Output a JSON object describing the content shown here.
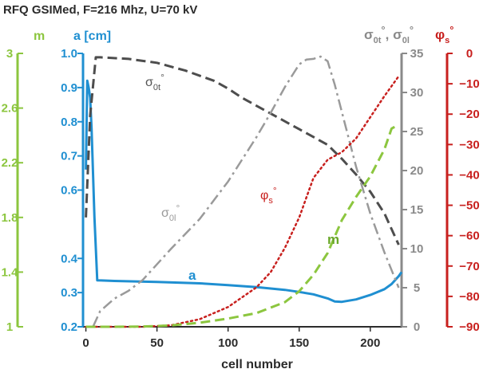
{
  "chart_data": {
    "type": "line",
    "title": "RFQ GSIMed, F=216 Mhz, U=70 kV",
    "xlabel": "cell number",
    "xlim": [
      -2,
      222
    ],
    "xticks": [
      "0",
      "50",
      "100",
      "150",
      "200"
    ],
    "axes": {
      "m": {
        "label": "m",
        "color": "#8cc63f",
        "range": [
          1,
          3
        ],
        "ticks": [
          "1",
          "1.4",
          "1.8",
          "2.2",
          "2.6",
          "3"
        ]
      },
      "a": {
        "label": "a [cm]",
        "color": "#1f8fd1",
        "range": [
          0.2,
          1.0
        ],
        "ticks": [
          "0.2",
          "0.3",
          "0.4",
          "0.6",
          "0.7",
          "0.8",
          "0.9",
          "1.0"
        ]
      },
      "sigma": {
        "label_main": "σ",
        "label_sub_1": "0t",
        "label_sub_2": "0l",
        "label_sup": "°",
        "color": "#8a8a8a",
        "range": [
          0,
          35
        ],
        "ticks": [
          "0",
          "5",
          "10",
          "15",
          "20",
          "25",
          "30",
          "35"
        ]
      },
      "phi": {
        "label_main": "φ",
        "label_sub": "s",
        "label_sup": "°",
        "color": "#c8201e",
        "range": [
          -90,
          0
        ],
        "ticks": [
          "0",
          "−10",
          "−20",
          "−30",
          "−40",
          "−50",
          "−60",
          "−70",
          "−80",
          "−90"
        ]
      }
    },
    "series": [
      {
        "name": "a",
        "axis": "a",
        "color": "#1f8fd1",
        "style": "solid",
        "x": [
          0,
          1,
          2,
          3,
          4,
          5,
          6,
          8,
          20,
          50,
          80,
          100,
          120,
          140,
          150,
          160,
          170,
          175,
          180,
          190,
          200,
          210,
          215,
          220,
          222
        ],
        "y": [
          0.66,
          0.92,
          0.9,
          0.87,
          0.78,
          0.65,
          0.52,
          0.336,
          0.334,
          0.331,
          0.327,
          0.322,
          0.316,
          0.308,
          0.302,
          0.295,
          0.283,
          0.274,
          0.273,
          0.28,
          0.293,
          0.31,
          0.325,
          0.348,
          0.36
        ]
      },
      {
        "name": "σ0t°",
        "axis": "sigma",
        "color": "#4d4d4d",
        "style": "dash",
        "x": [
          0,
          3,
          7,
          10,
          30,
          50,
          70,
          90,
          100,
          110,
          130,
          150,
          170,
          180,
          190,
          200,
          210,
          220
        ],
        "y": [
          14,
          27,
          34.5,
          34.5,
          34.3,
          33.8,
          32.8,
          31.5,
          30.5,
          29.3,
          27.3,
          25.3,
          23.3,
          21.5,
          19.5,
          17.3,
          14.5,
          10.5
        ]
      },
      {
        "name": "σ0l°",
        "axis": "sigma",
        "color": "#9a9a9a",
        "style": "dashdot",
        "x": [
          5,
          10,
          20,
          30,
          40,
          60,
          80,
          100,
          120,
          130,
          140,
          150,
          155,
          160,
          165,
          170,
          175,
          180,
          190,
          200,
          210,
          220
        ],
        "y": [
          0,
          2,
          3.6,
          4.6,
          6.0,
          10.0,
          13.8,
          18.6,
          24.3,
          27.4,
          30.7,
          33.6,
          34.2,
          34.3,
          34.6,
          34.0,
          31.0,
          27.5,
          20.5,
          14.5,
          9.5,
          5.0
        ]
      },
      {
        "name": "φs°",
        "axis": "phi",
        "color": "#c8201e",
        "style": "dot",
        "x": [
          0,
          20,
          40,
          60,
          80,
          100,
          120,
          130,
          140,
          150,
          160,
          170,
          180,
          190,
          200,
          210,
          220
        ],
        "y": [
          -90,
          -90,
          -90,
          -89.5,
          -87.5,
          -83.5,
          -77,
          -72,
          -64,
          -54,
          -41,
          -35,
          -32.5,
          -28,
          -21,
          -14,
          -7.5
        ]
      },
      {
        "name": "m",
        "axis": "m",
        "color": "#8cc63f",
        "style": "dash",
        "x": [
          0,
          20,
          40,
          60,
          80,
          100,
          120,
          140,
          150,
          160,
          170,
          180,
          190,
          200,
          210,
          215,
          220
        ],
        "y": [
          1,
          1.0,
          1.002,
          1.01,
          1.03,
          1.06,
          1.1,
          1.18,
          1.26,
          1.38,
          1.54,
          1.78,
          1.95,
          2.1,
          2.3,
          2.45,
          2.48
        ]
      }
    ],
    "annotations": {
      "sigma0t": {
        "main": "σ",
        "sub": "0t",
        "sup": "°"
      },
      "sigma0l": {
        "main": "σ",
        "sub": "0l",
        "sup": "°"
      },
      "phis": {
        "main": "φ",
        "sub": "s",
        "sup": "°"
      },
      "a": "a",
      "m": "m"
    }
  }
}
